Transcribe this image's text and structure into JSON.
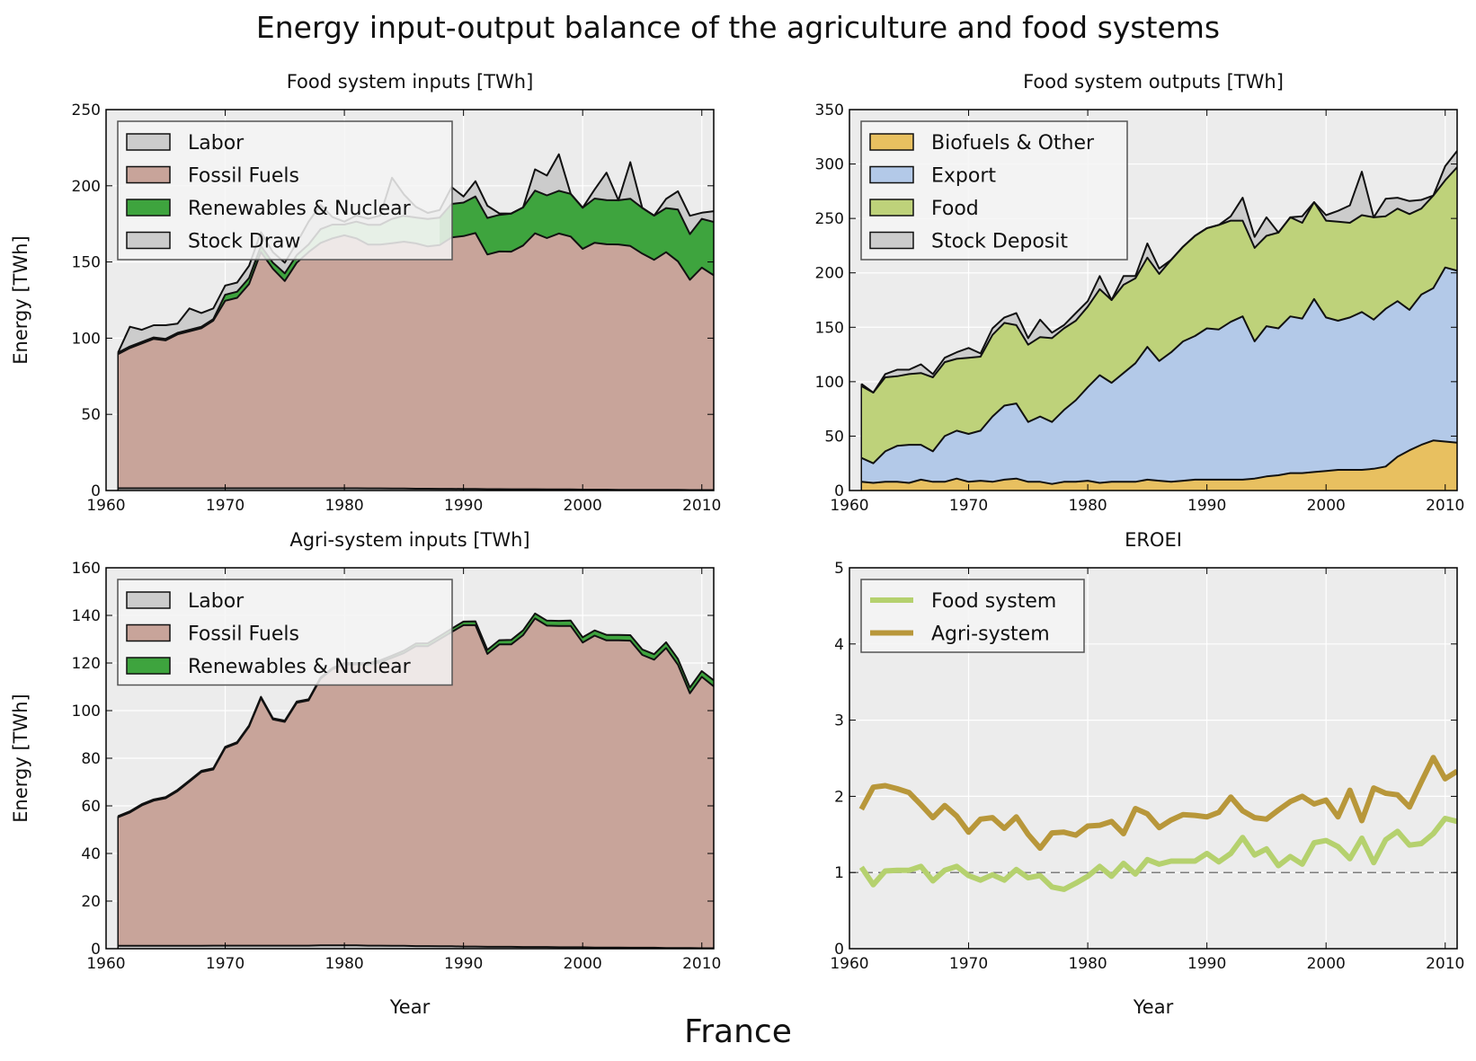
{
  "figure": {
    "suptitle": "Energy input-output balance of the agriculture and food systems",
    "footer": "France"
  },
  "chart_data": [
    {
      "id": "food_inputs",
      "type": "area",
      "title": "Food system inputs [TWh]",
      "ylabel": "Energy [TWh]",
      "xlabel": "",
      "xlim": [
        1960,
        2011
      ],
      "ylim": [
        0,
        250
      ],
      "xticks": [
        1960,
        1970,
        1980,
        1990,
        2000,
        2010
      ],
      "yticks": [
        0,
        50,
        100,
        150,
        200,
        250
      ],
      "grid": true,
      "legend": "top-left",
      "x": [
        1961,
        1962,
        1963,
        1964,
        1965,
        1966,
        1967,
        1968,
        1969,
        1970,
        1971,
        1972,
        1973,
        1974,
        1975,
        1976,
        1977,
        1978,
        1979,
        1980,
        1981,
        1982,
        1983,
        1984,
        1985,
        1986,
        1987,
        1988,
        1989,
        1990,
        1991,
        1992,
        1993,
        1994,
        1995,
        1996,
        1997,
        1998,
        1999,
        2000,
        2001,
        2002,
        2003,
        2004,
        2005,
        2006,
        2007,
        2008,
        2009,
        2010,
        2011
      ],
      "series": [
        {
          "name": "Labor",
          "color": "#cccccc",
          "values": [
            1.5,
            1.5,
            1.5,
            1.5,
            1.5,
            1.5,
            1.5,
            1.5,
            1.5,
            1.5,
            1.5,
            1.5,
            1.5,
            1.5,
            1.5,
            1.5,
            1.5,
            1.5,
            1.5,
            1.5,
            1.5,
            1.4,
            1.4,
            1.3,
            1.3,
            1.2,
            1.2,
            1.1,
            1.1,
            1.0,
            1.0,
            0.9,
            0.9,
            0.8,
            0.8,
            0.8,
            0.7,
            0.7,
            0.7,
            0.6,
            0.6,
            0.6,
            0.5,
            0.5,
            0.5,
            0.4,
            0.4,
            0.4,
            0.3,
            0.3,
            0.3
          ]
        },
        {
          "name": "Fossil Fuels",
          "color": "#c8a49a",
          "values": [
            88,
            92,
            95,
            98,
            97,
            101,
            103,
            105,
            110,
            123,
            125,
            134,
            155,
            144,
            136,
            148,
            155,
            161,
            164,
            166,
            164,
            160,
            160,
            161,
            162,
            161,
            159,
            160,
            165,
            166,
            168,
            154,
            156,
            156,
            160,
            168,
            165,
            168,
            166,
            158,
            162,
            161,
            161,
            160,
            155,
            151,
            156,
            150,
            138,
            146,
            141
          ]
        },
        {
          "name": "Renewables & Nuclear",
          "color": "#3ea43e",
          "values": [
            1,
            1,
            1,
            1,
            1,
            1,
            1,
            1,
            1,
            4,
            4,
            4,
            4,
            4,
            5,
            5,
            5,
            9,
            9,
            7,
            11,
            13,
            13,
            16,
            17,
            17,
            18,
            18,
            22,
            22,
            24,
            24,
            24,
            25,
            25,
            28,
            28,
            28,
            28,
            27,
            29,
            29,
            29,
            31,
            30,
            29,
            29,
            34,
            30,
            32,
            35
          ]
        },
        {
          "name": "Stock Draw",
          "color": "#cccccc",
          "values": [
            0,
            13,
            8,
            8,
            9,
            6,
            14,
            9,
            7,
            6,
            6,
            8,
            9,
            7,
            7,
            8,
            15,
            16,
            5,
            2,
            4,
            4,
            6,
            27,
            14,
            7,
            4,
            5,
            11,
            4,
            10,
            8,
            1,
            0,
            0,
            14,
            13,
            24,
            0,
            0,
            6,
            18,
            0,
            24,
            0,
            0,
            6,
            12,
            12,
            4,
            7
          ]
        }
      ],
      "stack_order": [
        "Labor",
        "Fossil Fuels",
        "Renewables & Nuclear",
        "Stock Draw"
      ],
      "highlight": {
        "color": "#9ad39a",
        "from": 1976,
        "to": 1988
      }
    },
    {
      "id": "food_outputs",
      "type": "area",
      "title": "Food system outputs [TWh]",
      "ylabel": "",
      "xlabel": "",
      "xlim": [
        1960,
        2011
      ],
      "ylim": [
        0,
        350
      ],
      "xticks": [
        1960,
        1970,
        1980,
        1990,
        2000,
        2010
      ],
      "yticks": [
        0,
        50,
        100,
        150,
        200,
        250,
        300,
        350
      ],
      "grid": true,
      "legend": "top-left",
      "x": [
        1961,
        1962,
        1963,
        1964,
        1965,
        1966,
        1967,
        1968,
        1969,
        1970,
        1971,
        1972,
        1973,
        1974,
        1975,
        1976,
        1977,
        1978,
        1979,
        1980,
        1981,
        1982,
        1983,
        1984,
        1985,
        1986,
        1987,
        1988,
        1989,
        1990,
        1991,
        1992,
        1993,
        1994,
        1995,
        1996,
        1997,
        1998,
        1999,
        2000,
        2001,
        2002,
        2003,
        2004,
        2005,
        2006,
        2007,
        2008,
        2009,
        2010,
        2011
      ],
      "series": [
        {
          "name": "Biofuels & Other",
          "color": "#e8c060",
          "values": [
            8,
            7,
            8,
            8,
            7,
            10,
            8,
            8,
            11,
            8,
            9,
            8,
            10,
            11,
            8,
            8,
            6,
            8,
            8,
            9,
            7,
            8,
            8,
            8,
            10,
            9,
            8,
            9,
            10,
            10,
            10,
            10,
            10,
            11,
            13,
            14,
            16,
            16,
            17,
            18,
            19,
            19,
            19,
            20,
            22,
            31,
            37,
            42,
            46,
            45,
            44
          ]
        },
        {
          "name": "Export",
          "color": "#b3c9e8",
          "values": [
            22,
            18,
            28,
            33,
            35,
            32,
            28,
            42,
            44,
            44,
            46,
            60,
            68,
            69,
            55,
            60,
            57,
            66,
            75,
            86,
            99,
            91,
            100,
            109,
            122,
            110,
            119,
            128,
            132,
            139,
            138,
            145,
            150,
            126,
            138,
            135,
            144,
            142,
            159,
            141,
            137,
            140,
            145,
            137,
            145,
            143,
            129,
            138,
            140,
            160,
            158
          ]
        },
        {
          "name": "Food",
          "color": "#bed27a",
          "values": [
            66,
            65,
            68,
            64,
            65,
            66,
            68,
            68,
            66,
            70,
            68,
            75,
            76,
            72,
            71,
            73,
            77,
            75,
            73,
            74,
            79,
            76,
            81,
            78,
            82,
            80,
            85,
            87,
            92,
            92,
            96,
            93,
            88,
            86,
            83,
            88,
            91,
            88,
            89,
            89,
            91,
            87,
            89,
            94,
            85,
            85,
            88,
            79,
            85,
            80,
            95
          ]
        },
        {
          "name": "Stock Deposit",
          "color": "#cccccc",
          "values": [
            2,
            0,
            3,
            6,
            4,
            8,
            3,
            4,
            6,
            9,
            3,
            6,
            5,
            11,
            6,
            16,
            5,
            3,
            7,
            5,
            12,
            0,
            8,
            2,
            13,
            5,
            0,
            0,
            0,
            0,
            0,
            4,
            21,
            10,
            17,
            0,
            0,
            6,
            0,
            5,
            10,
            16,
            40,
            0,
            16,
            10,
            12,
            8,
            0,
            13,
            15
          ]
        }
      ],
      "stack_order": [
        "Biofuels & Other",
        "Export",
        "Food",
        "Stock Deposit"
      ]
    },
    {
      "id": "agri_inputs",
      "type": "area",
      "title": "Agri-system inputs [TWh]",
      "ylabel": "Energy [TWh]",
      "xlabel": "Year",
      "xlim": [
        1960,
        2011
      ],
      "ylim": [
        0,
        160
      ],
      "xticks": [
        1960,
        1970,
        1980,
        1990,
        2000,
        2010
      ],
      "yticks": [
        0,
        20,
        40,
        60,
        80,
        100,
        120,
        140,
        160
      ],
      "grid": true,
      "legend": "top-left",
      "x": [
        1961,
        1962,
        1963,
        1964,
        1965,
        1966,
        1967,
        1968,
        1969,
        1970,
        1971,
        1972,
        1973,
        1974,
        1975,
        1976,
        1977,
        1978,
        1979,
        1980,
        1981,
        1982,
        1983,
        1984,
        1985,
        1986,
        1987,
        1988,
        1989,
        1990,
        1991,
        1992,
        1993,
        1994,
        1995,
        1996,
        1997,
        1998,
        1999,
        2000,
        2001,
        2002,
        2003,
        2004,
        2005,
        2006,
        2007,
        2008,
        2009,
        2010,
        2011
      ],
      "series": [
        {
          "name": "Labor",
          "color": "#cccccc",
          "values": [
            1.2,
            1.2,
            1.2,
            1.2,
            1.2,
            1.2,
            1.2,
            1.2,
            1.3,
            1.3,
            1.3,
            1.3,
            1.3,
            1.3,
            1.3,
            1.3,
            1.3,
            1.4,
            1.4,
            1.4,
            1.4,
            1.3,
            1.3,
            1.2,
            1.2,
            1.1,
            1.1,
            1.0,
            1.0,
            0.9,
            0.9,
            0.8,
            0.8,
            0.8,
            0.7,
            0.7,
            0.7,
            0.6,
            0.6,
            0.6,
            0.5,
            0.5,
            0.5,
            0.4,
            0.4,
            0.4,
            0.3,
            0.3,
            0.3,
            0.2,
            0.2
          ]
        },
        {
          "name": "Fossil Fuels",
          "color": "#c8a49a",
          "values": [
            54,
            56,
            59,
            61,
            62,
            65,
            69,
            73,
            74,
            83,
            85,
            92,
            104,
            95,
            94,
            102,
            103,
            112,
            116,
            118,
            118,
            118,
            119,
            121,
            123,
            126,
            126,
            129,
            132,
            135,
            135,
            123,
            127,
            127,
            131,
            138,
            135,
            135,
            135,
            128,
            131,
            129,
            129,
            129,
            123,
            121,
            126,
            119,
            107,
            114,
            110
          ]
        },
        {
          "name": "Renewables & Nuclear",
          "color": "#3ea43e",
          "values": [
            0.5,
            0.5,
            0.5,
            0.5,
            0.5,
            0.5,
            0.5,
            0.5,
            0.5,
            0.5,
            0.5,
            0.5,
            0.5,
            0.5,
            0.5,
            0.5,
            0.5,
            0.5,
            0.5,
            0.6,
            0.6,
            0.7,
            0.8,
            0.9,
            1.0,
            1.1,
            1.2,
            1.3,
            1.4,
            1.5,
            1.6,
            1.7,
            1.8,
            1.9,
            2.0,
            2.1,
            2.1,
            2.1,
            2.2,
            2.2,
            2.2,
            2.3,
            2.3,
            2.3,
            2.3,
            2.3,
            2.4,
            2.4,
            2.4,
            2.4,
            2.5
          ]
        }
      ],
      "stack_order": [
        "Labor",
        "Fossil Fuels",
        "Renewables & Nuclear"
      ]
    },
    {
      "id": "eroei",
      "type": "line",
      "title": "EROEI",
      "ylabel": "",
      "xlabel": "Year",
      "xlim": [
        1960,
        2011
      ],
      "ylim": [
        0,
        5
      ],
      "xticks": [
        1960,
        1970,
        1980,
        1990,
        2000,
        2010
      ],
      "yticks": [
        0,
        1,
        2,
        3,
        4,
        5
      ],
      "grid": true,
      "legend": "top-left",
      "reference_line": 1,
      "x": [
        1961,
        1962,
        1963,
        1964,
        1965,
        1966,
        1967,
        1968,
        1969,
        1970,
        1971,
        1972,
        1973,
        1974,
        1975,
        1976,
        1977,
        1978,
        1979,
        1980,
        1981,
        1982,
        1983,
        1984,
        1985,
        1986,
        1987,
        1988,
        1989,
        1990,
        1991,
        1992,
        1993,
        1994,
        1995,
        1996,
        1997,
        1998,
        1999,
        2000,
        2001,
        2002,
        2003,
        2004,
        2005,
        2006,
        2007,
        2008,
        2009,
        2010,
        2011
      ],
      "series": [
        {
          "name": "Food system",
          "color": "#b5d16e",
          "values": [
            1.07,
            0.84,
            1.02,
            1.03,
            1.03,
            1.08,
            0.89,
            1.03,
            1.08,
            0.96,
            0.9,
            0.97,
            0.9,
            1.04,
            0.93,
            0.96,
            0.81,
            0.78,
            0.86,
            0.95,
            1.08,
            0.95,
            1.12,
            0.98,
            1.17,
            1.11,
            1.15,
            1.15,
            1.15,
            1.25,
            1.14,
            1.25,
            1.46,
            1.23,
            1.31,
            1.09,
            1.21,
            1.11,
            1.39,
            1.42,
            1.34,
            1.18,
            1.45,
            1.13,
            1.43,
            1.54,
            1.36,
            1.38,
            1.51,
            1.71,
            1.67
          ]
        },
        {
          "name": "Agri-system",
          "color": "#b8973a",
          "values": [
            1.83,
            2.12,
            2.14,
            2.1,
            2.05,
            1.89,
            1.72,
            1.88,
            1.74,
            1.53,
            1.7,
            1.72,
            1.58,
            1.73,
            1.5,
            1.32,
            1.52,
            1.53,
            1.49,
            1.61,
            1.62,
            1.67,
            1.51,
            1.84,
            1.77,
            1.59,
            1.69,
            1.76,
            1.75,
            1.73,
            1.79,
            1.99,
            1.81,
            1.72,
            1.7,
            1.82,
            1.93,
            2.0,
            1.9,
            1.95,
            1.73,
            2.08,
            1.68,
            2.11,
            2.04,
            2.02,
            1.86,
            2.19,
            2.51,
            2.23,
            2.33
          ]
        }
      ]
    }
  ]
}
